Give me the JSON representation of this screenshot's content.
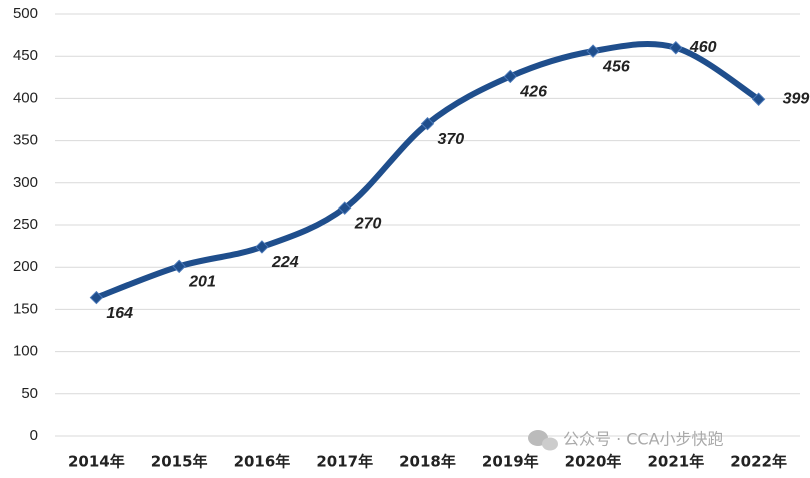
{
  "chart_data": {
    "type": "line",
    "categories": [
      "2014年",
      "2015年",
      "2016年",
      "2017年",
      "2018年",
      "2019年",
      "2020年",
      "2021年",
      "2022年"
    ],
    "series": [
      {
        "color": "#1f4e8c",
        "values": [
          164,
          201,
          224,
          270,
          370,
          426,
          456,
          460,
          399
        ]
      }
    ],
    "ylim": [
      0,
      500
    ],
    "yticks": [
      0,
      50,
      100,
      150,
      200,
      250,
      300,
      350,
      400,
      450,
      500
    ],
    "grid": true,
    "watermark": "公众号 · CCA小步快跑"
  }
}
